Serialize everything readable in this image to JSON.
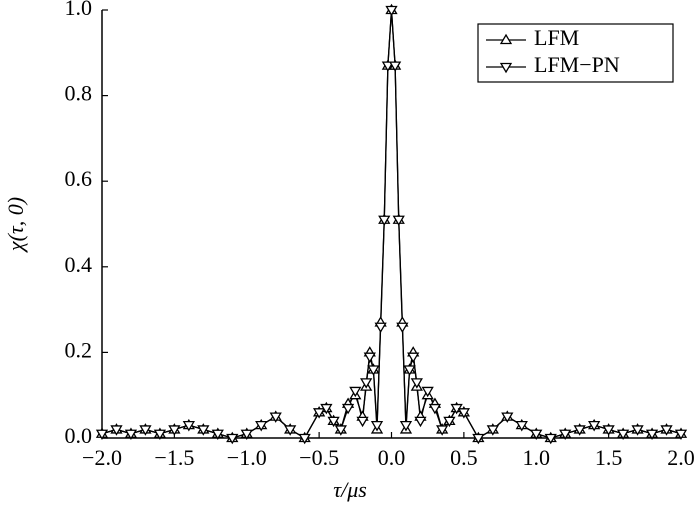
{
  "chart_data": {
    "type": "line",
    "xlabel": "τ/μs",
    "ylabel": "χ(τ, 0)",
    "x": [
      -2.0,
      -1.9,
      -1.8,
      -1.7,
      -1.6,
      -1.5,
      -1.4,
      -1.3,
      -1.2,
      -1.1,
      -1.0,
      -0.9,
      -0.8,
      -0.7,
      -0.6,
      -0.5,
      -0.45,
      -0.4,
      -0.35,
      -0.3,
      -0.25,
      -0.2,
      -0.175,
      -0.15,
      -0.125,
      -0.1,
      -0.075,
      -0.05,
      -0.025,
      0,
      0.025,
      0.05,
      0.075,
      0.1,
      0.125,
      0.15,
      0.175,
      0.2,
      0.25,
      0.3,
      0.35,
      0.4,
      0.45,
      0.5,
      0.6,
      0.7,
      0.8,
      0.9,
      1.0,
      1.1,
      1.2,
      1.3,
      1.4,
      1.5,
      1.6,
      1.7,
      1.8,
      1.9,
      2.0
    ],
    "series": [
      {
        "name": "LFM",
        "color": "#000000",
        "marker": "triangle-up",
        "values": [
          0.01,
          0.02,
          0.01,
          0.02,
          0.01,
          0.02,
          0.03,
          0.02,
          0.01,
          0.0,
          0.01,
          0.03,
          0.05,
          0.02,
          0.0,
          0.06,
          0.07,
          0.04,
          0.02,
          0.08,
          0.1,
          0.05,
          0.12,
          0.2,
          0.16,
          0.02,
          0.27,
          0.51,
          0.87,
          1.0,
          0.87,
          0.51,
          0.27,
          0.02,
          0.16,
          0.2,
          0.12,
          0.05,
          0.1,
          0.08,
          0.02,
          0.04,
          0.07,
          0.06,
          0.0,
          0.02,
          0.05,
          0.03,
          0.01,
          0.0,
          0.01,
          0.02,
          0.03,
          0.02,
          0.01,
          0.02,
          0.01,
          0.02,
          0.01
        ]
      },
      {
        "name": "LFM−PN",
        "color": "#000000",
        "marker": "triangle-down",
        "values": [
          0.01,
          0.02,
          0.01,
          0.02,
          0.01,
          0.02,
          0.03,
          0.02,
          0.01,
          0.0,
          0.01,
          0.03,
          0.05,
          0.02,
          0.0,
          0.06,
          0.07,
          0.04,
          0.02,
          0.07,
          0.11,
          0.04,
          0.13,
          0.19,
          0.16,
          0.03,
          0.26,
          0.51,
          0.87,
          1.0,
          0.87,
          0.51,
          0.26,
          0.03,
          0.16,
          0.19,
          0.13,
          0.04,
          0.11,
          0.07,
          0.02,
          0.04,
          0.07,
          0.06,
          0.0,
          0.02,
          0.05,
          0.03,
          0.01,
          0.0,
          0.01,
          0.02,
          0.03,
          0.02,
          0.01,
          0.02,
          0.01,
          0.02,
          0.01
        ]
      }
    ],
    "xlim": [
      -2.0,
      2.0
    ],
    "xticks": [
      {
        "value": -2,
        "label": "−2.0"
      },
      {
        "value": -1.5,
        "label": "−1.5"
      },
      {
        "value": -1,
        "label": "−1.0"
      },
      {
        "value": -0.5,
        "label": "−0.5"
      },
      {
        "value": 0,
        "label": "0.0"
      },
      0.5,
      {
        "value": 1,
        "label": "1.0"
      },
      1.5,
      {
        "value": 2,
        "label": "2.0"
      }
    ],
    "ylim": [
      0,
      1.0
    ],
    "yticks": [
      {
        "value": 0,
        "label": "0.0"
      },
      0.2,
      0.4,
      0.6,
      0.8,
      {
        "value": 1,
        "label": "1.0"
      }
    ],
    "legend": "upper right"
  }
}
